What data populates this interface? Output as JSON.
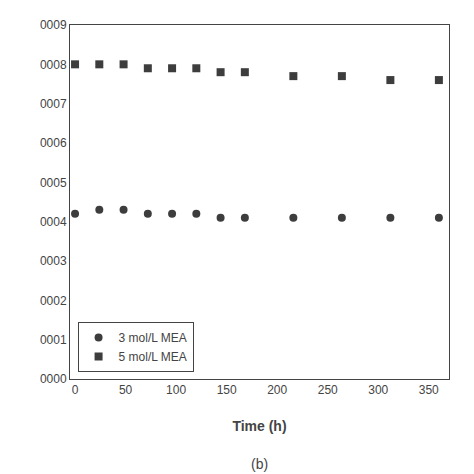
{
  "chart_data": {
    "type": "scatter",
    "subtitle": "(b)",
    "x_label": "Time (h)",
    "series": [
      {
        "name": "3 mol/L MEA",
        "marker": "circle",
        "color": "#3d3d3d",
        "x": [
          0,
          24,
          48,
          72,
          96,
          120,
          144,
          168,
          216,
          264,
          312,
          360
        ],
        "values": [
          0.00042,
          0.00043,
          0.00043,
          0.00042,
          0.00042,
          0.00042,
          0.00041,
          0.00041,
          0.00041,
          0.00041,
          0.00041,
          0.00041
        ]
      },
      {
        "name": "5 mol/L MEA",
        "marker": "square",
        "color": "#3d3d3d",
        "x": [
          0,
          24,
          48,
          72,
          96,
          120,
          144,
          168,
          216,
          264,
          312,
          360
        ],
        "values": [
          0.0008,
          0.0008,
          0.0008,
          0.00079,
          0.00079,
          0.00079,
          0.00078,
          0.00078,
          0.00077,
          0.00077,
          0.00076,
          0.00076
        ]
      }
    ],
    "xlim": [
      -5,
      370
    ],
    "xticks": [
      0,
      50,
      100,
      150,
      200,
      250,
      300,
      350
    ],
    "ylim": [
      0,
      0.0009
    ],
    "yticks": [
      {
        "value": 0,
        "label": "0000"
      },
      {
        "value": 0.0001,
        "label": "0001"
      },
      {
        "value": 0.0002,
        "label": "0002"
      },
      {
        "value": 0.0003,
        "label": "0003"
      },
      {
        "value": 0.0004,
        "label": "0004"
      },
      {
        "value": 0.0005,
        "label": "0005"
      },
      {
        "value": 0.0006,
        "label": "0006"
      },
      {
        "value": 0.0007,
        "label": "0007"
      },
      {
        "value": 0.0008,
        "label": "0008"
      },
      {
        "value": 0.0009,
        "label": "0009"
      }
    ],
    "legend": "lower left",
    "grid": false
  }
}
